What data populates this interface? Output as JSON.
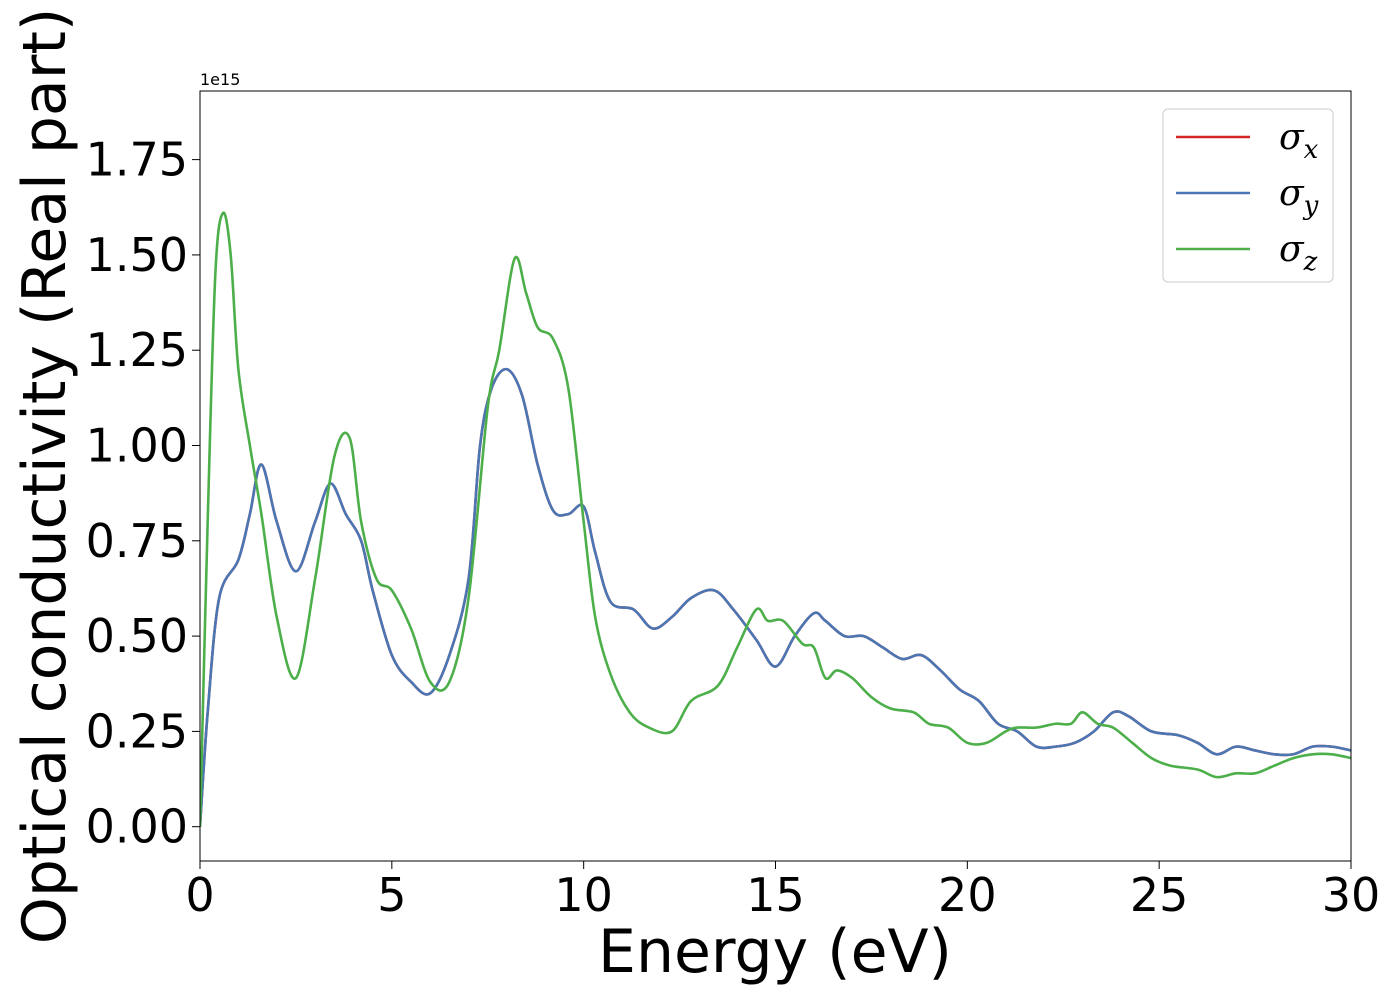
{
  "chart_data": {
    "type": "line",
    "title": "",
    "xlabel": "Energy (eV)",
    "ylabel": "Optical conductivity (Real part)",
    "y_offset_text": "1e15",
    "xlim": [
      0,
      30
    ],
    "ylim": [
      -0.09,
      1.93
    ],
    "x_ticks": [
      0,
      5,
      10,
      15,
      20,
      25,
      30
    ],
    "y_ticks": [
      0.0,
      0.25,
      0.5,
      0.75,
      1.0,
      1.25,
      1.5,
      1.75
    ],
    "x_tick_labels": [
      "0",
      "5",
      "10",
      "15",
      "20",
      "25",
      "30"
    ],
    "y_tick_labels": [
      "0.00",
      "0.25",
      "0.50",
      "0.75",
      "1.00",
      "1.25",
      "1.50",
      "1.75"
    ],
    "grid": false,
    "legend_position": "top-right",
    "legend": [
      {
        "base": "σ",
        "sub": "x",
        "color": "#d62728"
      },
      {
        "base": "σ",
        "sub": "y",
        "color": "#4a77b4"
      },
      {
        "base": "σ",
        "sub": "z",
        "color": "#4daf4a"
      }
    ],
    "series": [
      {
        "name": "σx",
        "color": "#d62728",
        "x": [
          0,
          0.2,
          0.5,
          1.0,
          1.3,
          1.6,
          2.0,
          2.5,
          3.0,
          3.4,
          3.8,
          4.2,
          4.5,
          5.0,
          5.5,
          6.0,
          6.5,
          7.0,
          7.3,
          7.6,
          8.0,
          8.4,
          8.8,
          9.2,
          9.6,
          10.0,
          10.3,
          10.7,
          11.3,
          11.8,
          12.3,
          12.8,
          13.4,
          13.9,
          14.5,
          15.0,
          15.5,
          16.0,
          16.3,
          16.8,
          17.3,
          17.8,
          18.3,
          18.8,
          19.3,
          19.8,
          20.3,
          20.8,
          21.3,
          21.8,
          22.3,
          22.8,
          23.3,
          23.8,
          24.2,
          24.8,
          25.5,
          26.0,
          26.5,
          27.0,
          27.5,
          28.0,
          28.5,
          29.0,
          29.5,
          30.0
        ],
        "y": [
          0.0,
          0.3,
          0.6,
          0.7,
          0.82,
          0.95,
          0.8,
          0.67,
          0.8,
          0.9,
          0.82,
          0.75,
          0.62,
          0.45,
          0.38,
          0.35,
          0.45,
          0.65,
          1.0,
          1.15,
          1.2,
          1.13,
          0.95,
          0.83,
          0.82,
          0.84,
          0.72,
          0.59,
          0.57,
          0.52,
          0.55,
          0.6,
          0.62,
          0.57,
          0.49,
          0.42,
          0.5,
          0.56,
          0.54,
          0.5,
          0.5,
          0.47,
          0.44,
          0.45,
          0.41,
          0.36,
          0.33,
          0.27,
          0.25,
          0.21,
          0.21,
          0.22,
          0.25,
          0.3,
          0.29,
          0.25,
          0.24,
          0.22,
          0.19,
          0.21,
          0.2,
          0.19,
          0.19,
          0.21,
          0.21,
          0.2
        ]
      },
      {
        "name": "σy",
        "color": "#4a77b4",
        "x": [
          0,
          0.2,
          0.5,
          1.0,
          1.3,
          1.6,
          2.0,
          2.5,
          3.0,
          3.4,
          3.8,
          4.2,
          4.5,
          5.0,
          5.5,
          6.0,
          6.5,
          7.0,
          7.3,
          7.6,
          8.0,
          8.4,
          8.8,
          9.2,
          9.6,
          10.0,
          10.3,
          10.7,
          11.3,
          11.8,
          12.3,
          12.8,
          13.4,
          13.9,
          14.5,
          15.0,
          15.5,
          16.0,
          16.3,
          16.8,
          17.3,
          17.8,
          18.3,
          18.8,
          19.3,
          19.8,
          20.3,
          20.8,
          21.3,
          21.8,
          22.3,
          22.8,
          23.3,
          23.8,
          24.2,
          24.8,
          25.5,
          26.0,
          26.5,
          27.0,
          27.5,
          28.0,
          28.5,
          29.0,
          29.5,
          30.0
        ],
        "y": [
          0.0,
          0.3,
          0.6,
          0.7,
          0.82,
          0.95,
          0.8,
          0.67,
          0.8,
          0.9,
          0.82,
          0.75,
          0.62,
          0.45,
          0.38,
          0.35,
          0.45,
          0.65,
          1.0,
          1.15,
          1.2,
          1.13,
          0.95,
          0.83,
          0.82,
          0.84,
          0.72,
          0.59,
          0.57,
          0.52,
          0.55,
          0.6,
          0.62,
          0.57,
          0.49,
          0.42,
          0.5,
          0.56,
          0.54,
          0.5,
          0.5,
          0.47,
          0.44,
          0.45,
          0.41,
          0.36,
          0.33,
          0.27,
          0.25,
          0.21,
          0.21,
          0.22,
          0.25,
          0.3,
          0.29,
          0.25,
          0.24,
          0.22,
          0.19,
          0.21,
          0.2,
          0.19,
          0.19,
          0.21,
          0.21,
          0.2
        ]
      },
      {
        "name": "σz",
        "color": "#4daf4a",
        "x": [
          0,
          0.2,
          0.4,
          0.6,
          0.8,
          1.0,
          1.3,
          1.6,
          2.0,
          2.5,
          3.0,
          3.5,
          3.9,
          4.2,
          4.6,
          5.0,
          5.5,
          6.0,
          6.5,
          7.0,
          7.5,
          7.8,
          8.2,
          8.5,
          8.8,
          9.2,
          9.6,
          10.0,
          10.3,
          10.7,
          11.2,
          11.7,
          12.3,
          12.8,
          13.5,
          14.0,
          14.5,
          14.8,
          15.2,
          15.7,
          16.0,
          16.3,
          16.6,
          17.0,
          17.5,
          18.0,
          18.6,
          19.0,
          19.5,
          20.0,
          20.5,
          21.0,
          21.3,
          21.8,
          22.3,
          22.7,
          23.0,
          23.4,
          23.8,
          24.3,
          24.8,
          25.3,
          26.0,
          26.5,
          27.0,
          27.5,
          28.0,
          28.5,
          29.0,
          29.5,
          30.0
        ],
        "y": [
          0.0,
          0.8,
          1.45,
          1.61,
          1.5,
          1.2,
          1.0,
          0.82,
          0.55,
          0.39,
          0.65,
          0.97,
          1.02,
          0.8,
          0.65,
          0.62,
          0.52,
          0.38,
          0.38,
          0.6,
          1.1,
          1.25,
          1.49,
          1.4,
          1.31,
          1.28,
          1.15,
          0.8,
          0.55,
          0.4,
          0.3,
          0.26,
          0.25,
          0.33,
          0.37,
          0.47,
          0.57,
          0.54,
          0.54,
          0.48,
          0.47,
          0.39,
          0.41,
          0.39,
          0.34,
          0.31,
          0.3,
          0.27,
          0.26,
          0.22,
          0.22,
          0.25,
          0.26,
          0.26,
          0.27,
          0.27,
          0.3,
          0.27,
          0.26,
          0.22,
          0.18,
          0.16,
          0.15,
          0.13,
          0.14,
          0.14,
          0.16,
          0.18,
          0.19,
          0.19,
          0.18
        ]
      }
    ]
  }
}
